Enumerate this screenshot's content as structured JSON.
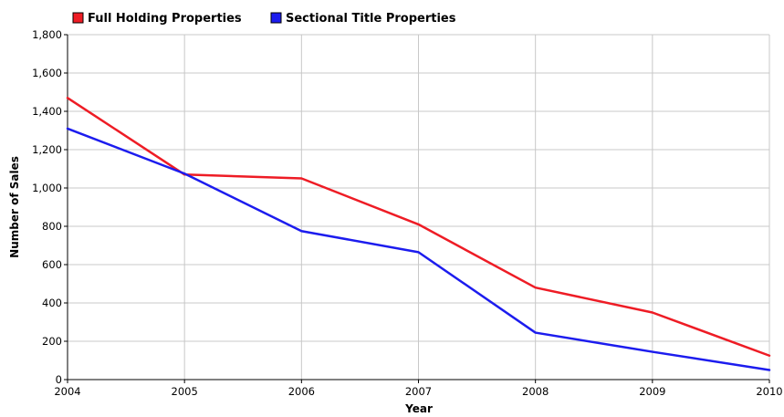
{
  "chart_data": {
    "type": "line",
    "title": "",
    "xlabel": "Year",
    "ylabel": "Number of Sales",
    "categories": [
      "2004",
      "2005",
      "2006",
      "2007",
      "2008",
      "2009",
      "2010"
    ],
    "ylim": [
      0,
      1800
    ],
    "yticks": [
      0,
      200,
      400,
      600,
      800,
      1000,
      1200,
      1400,
      1600,
      1800
    ],
    "ytick_labels": [
      "0",
      "200",
      "400",
      "600",
      "800",
      "1,000",
      "1,200",
      "1,400",
      "1,600",
      "1,800"
    ],
    "grid": true,
    "legend_position": "top-left",
    "series": [
      {
        "name": "Full Holding Properties",
        "color": "#ee1c25",
        "values": [
          1470,
          1070,
          1050,
          810,
          480,
          350,
          125
        ]
      },
      {
        "name": "Sectional Title Properties",
        "color": "#1c1cee",
        "values": [
          1310,
          1075,
          775,
          665,
          245,
          145,
          50
        ]
      }
    ]
  }
}
